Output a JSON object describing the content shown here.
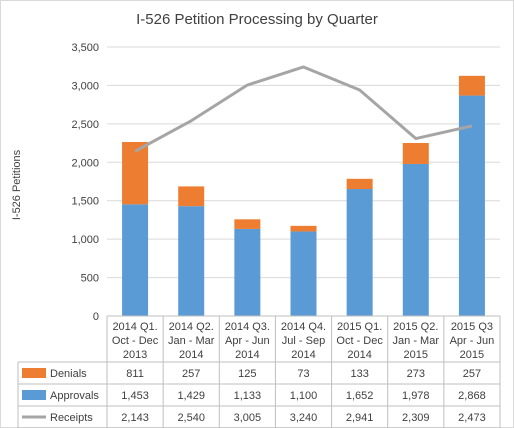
{
  "chart_data": {
    "type": "bar",
    "stacked": true,
    "title": "I-526 Petition Processing by Quarter",
    "ylabel": "I-526 Petitions",
    "xlabel": "",
    "ylim": [
      0,
      3500
    ],
    "yticks": [
      0,
      500,
      1000,
      1500,
      2000,
      2500,
      3000,
      3500
    ],
    "ytick_labels": [
      "0",
      "500",
      "1,000",
      "1,500",
      "2,000",
      "2,500",
      "3,000",
      "3,500"
    ],
    "grid": true,
    "legend": "data-table",
    "categories": [
      [
        "2014 Q1.",
        "Oct - Dec",
        "2013"
      ],
      [
        "2014 Q2.",
        "Jan - Mar",
        "2014"
      ],
      [
        "2014 Q3.",
        "Apr - Jun",
        "2014"
      ],
      [
        "2014 Q4.",
        "Jul - Sep",
        "2014"
      ],
      [
        "2015 Q1.",
        "Oct - Dec",
        "2014"
      ],
      [
        "2015 Q2.",
        "Jan - Mar",
        "2015"
      ],
      [
        "2015 Q3",
        "Apr - Jun",
        "2015"
      ]
    ],
    "series": [
      {
        "name": "Denials",
        "kind": "bar",
        "color": "#ed7d31",
        "values": [
          811,
          257,
          125,
          73,
          133,
          273,
          257
        ],
        "labels": [
          "811",
          "257",
          "125",
          "73",
          "133",
          "273",
          "257"
        ]
      },
      {
        "name": "Approvals",
        "kind": "bar",
        "color": "#5b9bd5",
        "values": [
          1453,
          1429,
          1133,
          1100,
          1652,
          1978,
          2868
        ],
        "labels": [
          "1,453",
          "1,429",
          "1,133",
          "1,100",
          "1,652",
          "1,978",
          "2,868"
        ]
      },
      {
        "name": "Receipts",
        "kind": "line",
        "color": "#a5a5a5",
        "values": [
          2143,
          2540,
          3005,
          3240,
          2941,
          2309,
          2473
        ],
        "labels": [
          "2,143",
          "2,540",
          "3,005",
          "3,240",
          "2,941",
          "2,309",
          "2,473"
        ]
      }
    ]
  }
}
